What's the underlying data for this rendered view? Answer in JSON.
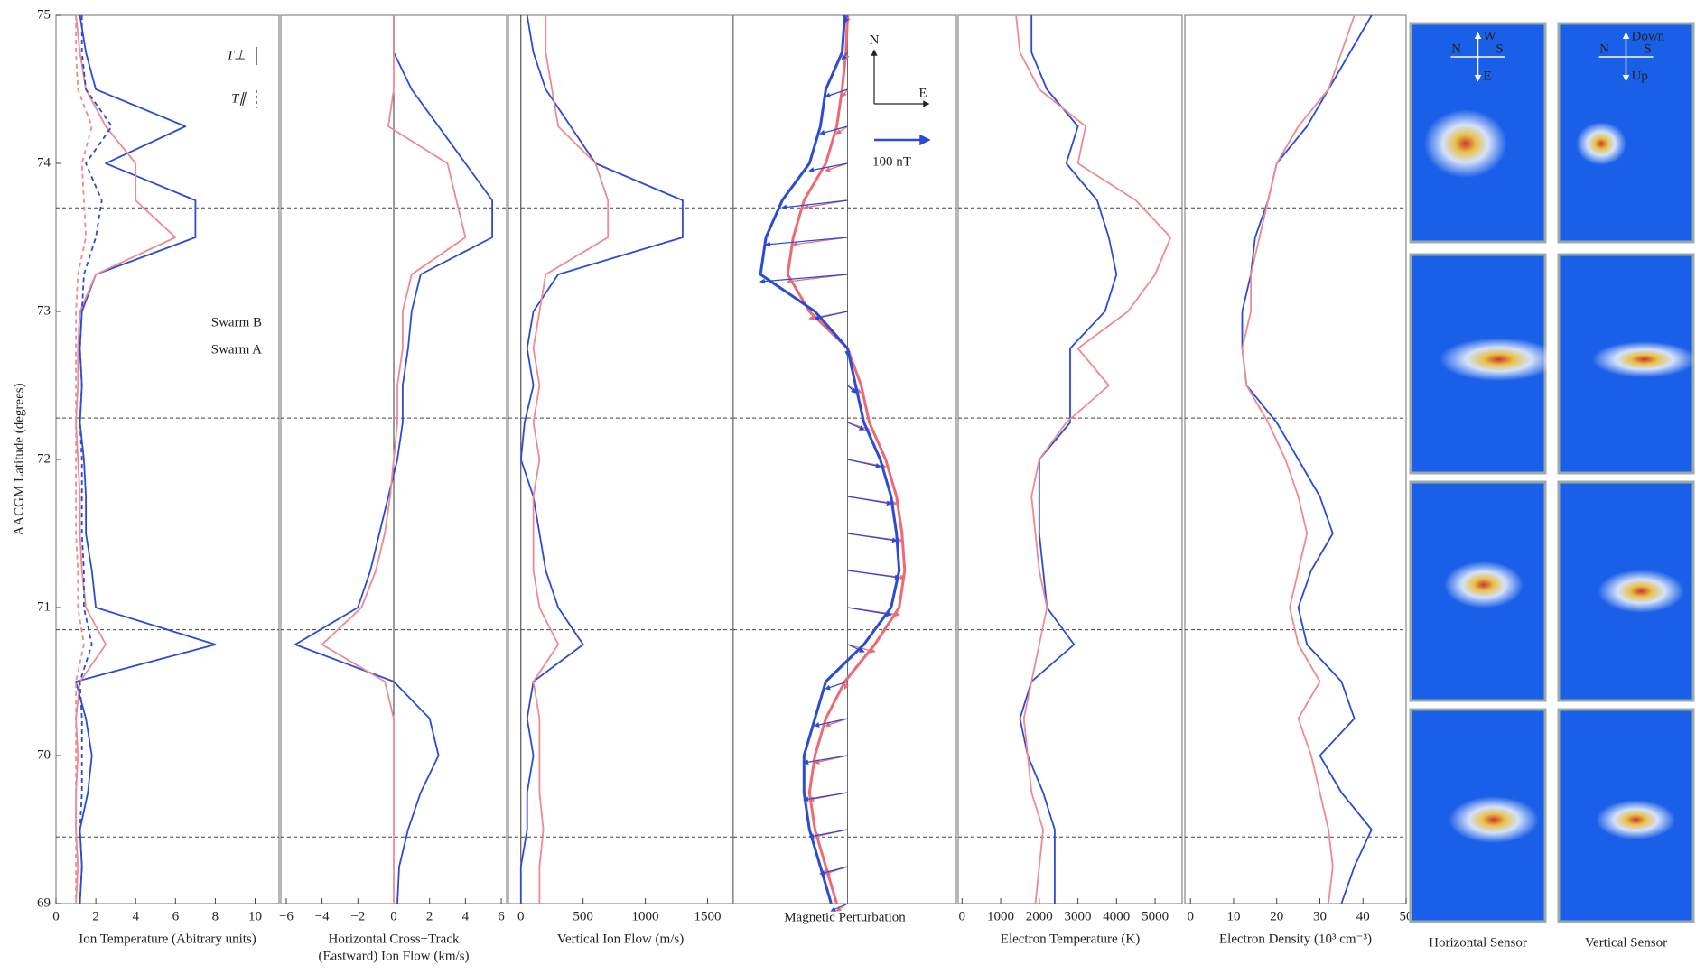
{
  "chart_data": [
    {
      "type": "line",
      "xlabel": [
        "Ion Temperature (Abitrary units)"
      ],
      "ylabel": "AACGM Latitude (degrees)",
      "xlim": [
        0,
        11.2
      ],
      "xticks": [
        0,
        2,
        4,
        6,
        8,
        10
      ],
      "ylim": [
        69,
        75
      ],
      "yticks": [
        69,
        70,
        71,
        72,
        73,
        74,
        75
      ],
      "hlines": [
        73.7,
        72.28,
        70.85,
        69.45
      ],
      "style_legend": [
        {
          "label": "T⊥",
          "dashed": false
        },
        {
          "label": "T∥",
          "dashed": true
        }
      ],
      "y": [
        75,
        74.75,
        74.5,
        74.25,
        74,
        73.75,
        73.5,
        73.25,
        73,
        72.75,
        72.5,
        72.25,
        72,
        71.75,
        71.5,
        71.25,
        71,
        70.75,
        70.5,
        70.25,
        70,
        69.75,
        69.5,
        69.25,
        69
      ],
      "series": [
        {
          "name": "Swarm B",
          "color": "#2a4bd6",
          "dashed": false,
          "values": [
            1.2,
            1.5,
            2,
            6.5,
            2.5,
            7,
            7,
            2,
            1.3,
            1.2,
            1.3,
            1.2,
            1.4,
            1.5,
            1.5,
            1.8,
            2,
            8,
            1,
            1.5,
            1.8,
            1.6,
            1.2,
            1.3,
            1.2
          ]
        },
        {
          "name": "Swarm A",
          "color": "#ee8a90",
          "dashed": false,
          "values": [
            1,
            1.2,
            1.5,
            2.5,
            4,
            4,
            6,
            2,
            1.2,
            1.1,
            1.1,
            1,
            1.1,
            1.2,
            1.2,
            1.3,
            1.5,
            2.5,
            1.2,
            1,
            1.1,
            1,
            1,
            1.1,
            1
          ]
        },
        {
          "color": "#2a4bd6",
          "dashed": true,
          "values": [
            1.3,
            1.3,
            1.5,
            2.8,
            1.5,
            2.3,
            2,
            1.4,
            1.3,
            1.2,
            1.3,
            1.2,
            1.3,
            1.3,
            1.3,
            1.4,
            1.4,
            1.8,
            1.2,
            1.3,
            1.3,
            1.3,
            1.2,
            1.3,
            1.2
          ]
        },
        {
          "color": "#ee8a90",
          "dashed": true,
          "values": [
            1,
            1,
            1.1,
            1.8,
            1.3,
            1.4,
            1.5,
            1.1,
            1,
            1,
            1,
            1,
            1,
            1,
            1,
            1.1,
            1.1,
            1.4,
            1,
            1,
            1,
            1,
            1,
            1,
            1
          ]
        }
      ]
    },
    {
      "type": "line",
      "xlabel": [
        "Horizontal Cross−Track",
        "(Eastward) Ion Flow (km/s)"
      ],
      "xlim": [
        -6.3,
        6.3
      ],
      "xticks": [
        {
          "value": -6,
          "label": "−6"
        },
        {
          "value": -4,
          "label": "−4"
        },
        {
          "value": -2,
          "label": "−2"
        },
        0,
        2,
        4,
        6
      ],
      "ylim": [
        69,
        75
      ],
      "hlines": [
        73.7,
        72.28,
        70.85,
        69.45
      ],
      "zero_line": true,
      "y": [
        75,
        74.75,
        74.5,
        74.25,
        74,
        73.75,
        73.5,
        73.25,
        73,
        72.75,
        72.5,
        72.25,
        72,
        71.75,
        71.5,
        71.25,
        71,
        70.75,
        70.5,
        70.25,
        70,
        69.75,
        69.5,
        69.25,
        69
      ],
      "series": [
        {
          "color": "#2a4bd6",
          "values": [
            0,
            0,
            1,
            2.5,
            4,
            5.5,
            5.5,
            1.5,
            1,
            0.8,
            0.5,
            0.5,
            0.2,
            -0.3,
            -0.8,
            -1.3,
            -2,
            -5.5,
            0,
            2,
            2.5,
            1.5,
            0.8,
            0.3,
            0.2
          ]
        },
        {
          "color": "#ee8a90",
          "values": [
            0,
            0,
            0,
            -0.3,
            3,
            3.5,
            4,
            1,
            0.5,
            0.5,
            0.2,
            0.2,
            0,
            -0.2,
            -0.5,
            -1,
            -1.8,
            -4,
            -0.5,
            0,
            0,
            0,
            0,
            0,
            0
          ]
        }
      ]
    },
    {
      "type": "line",
      "xlabel": [
        "Vertical Ion Flow (m/s)"
      ],
      "xlim": [
        -100,
        1700
      ],
      "xticks": [
        0,
        500,
        1000,
        1500
      ],
      "ylim": [
        69,
        75
      ],
      "hlines": [
        73.7,
        72.28,
        70.85,
        69.45
      ],
      "zero_line": true,
      "y": [
        75,
        74.75,
        74.5,
        74.25,
        74,
        73.75,
        73.5,
        73.25,
        73,
        72.75,
        72.5,
        72.25,
        72,
        71.75,
        71.5,
        71.25,
        71,
        70.75,
        70.5,
        70.25,
        70,
        69.75,
        69.5,
        69.25,
        69
      ],
      "series": [
        {
          "color": "#2a4bd6",
          "values": [
            50,
            100,
            200,
            400,
            600,
            1300,
            1300,
            300,
            100,
            50,
            100,
            30,
            0,
            100,
            150,
            200,
            300,
            500,
            100,
            50,
            100,
            50,
            50,
            0,
            0
          ]
        },
        {
          "color": "#ee8a90",
          "values": [
            200,
            200,
            250,
            300,
            600,
            700,
            700,
            200,
            150,
            100,
            150,
            100,
            150,
            100,
            100,
            100,
            150,
            300,
            100,
            150,
            150,
            150,
            180,
            150,
            150
          ]
        }
      ]
    },
    {
      "type": "quiver",
      "xlabel": [
        "Magnetic Perturbation"
      ],
      "xlim": [
        -210,
        200
      ],
      "ylim": [
        69,
        75
      ],
      "hlines": [
        73.7,
        72.28,
        70.85,
        69.45
      ],
      "compass": [
        "N",
        "E"
      ],
      "scale_arrow": {
        "value": 100,
        "label": "100 nT"
      },
      "y": [
        75,
        74.75,
        74.5,
        74.25,
        74,
        73.75,
        73.5,
        73.25,
        73,
        72.75,
        72.5,
        72.25,
        72,
        71.75,
        71.5,
        71.25,
        71,
        70.75,
        70.5,
        70.25,
        70,
        69.75,
        69.5,
        69.25,
        69
      ],
      "series": [
        {
          "color": "#ee6a72",
          "values": [
            0,
            -3,
            -10,
            -20,
            -40,
            -80,
            -100,
            -110,
            -70,
            0,
            25,
            40,
            70,
            90,
            100,
            105,
            95,
            50,
            -5,
            -40,
            -60,
            -70,
            -60,
            -40,
            -20
          ]
        },
        {
          "color": "#2a4bd6",
          "values": [
            -5,
            -10,
            -40,
            -50,
            -70,
            -120,
            -150,
            -160,
            -60,
            0,
            15,
            30,
            60,
            80,
            90,
            95,
            80,
            30,
            -40,
            -60,
            -80,
            -80,
            -70,
            -50,
            -30
          ]
        }
      ]
    },
    {
      "type": "line",
      "xlabel": [
        "Electron Temperature (K)"
      ],
      "xlim": [
        -100,
        5700
      ],
      "xticks": [
        0,
        1000,
        2000,
        3000,
        4000,
        5000
      ],
      "ylim": [
        69,
        75
      ],
      "hlines": [
        73.7,
        72.28,
        70.85,
        69.45
      ],
      "y": [
        75,
        74.75,
        74.5,
        74.25,
        74,
        73.75,
        73.5,
        73.25,
        73,
        72.75,
        72.5,
        72.25,
        72,
        71.75,
        71.5,
        71.25,
        71,
        70.75,
        70.5,
        70.25,
        70,
        69.75,
        69.5,
        69.25,
        69
      ],
      "series": [
        {
          "color": "#2a4bd6",
          "values": [
            1800,
            1800,
            2200,
            3000,
            2700,
            3500,
            3800,
            4000,
            3700,
            2800,
            2800,
            2800,
            2000,
            2000,
            2000,
            2100,
            2200,
            2900,
            1800,
            1500,
            1700,
            2100,
            2400,
            2400,
            2400
          ]
        },
        {
          "color": "#ee8a90",
          "values": [
            1400,
            1500,
            2000,
            3200,
            3000,
            4500,
            5400,
            5000,
            4300,
            3000,
            3800,
            2700,
            2000,
            1800,
            1900,
            2000,
            2200,
            2000,
            1800,
            1600,
            1700,
            1800,
            2100,
            2000,
            1900
          ]
        }
      ]
    },
    {
      "type": "line",
      "xlabel": [
        "Electron Density (10³ cm⁻³)"
      ],
      "xlim": [
        -1.3,
        50
      ],
      "xticks": [
        0,
        10,
        20,
        30,
        40,
        50
      ],
      "ylim": [
        69,
        75
      ],
      "hlines": [
        73.7,
        72.28,
        70.85,
        69.45
      ],
      "y": [
        75,
        74.75,
        74.5,
        74.25,
        74,
        73.75,
        73.5,
        73.25,
        73,
        72.75,
        72.5,
        72.25,
        72,
        71.75,
        71.5,
        71.25,
        71,
        70.75,
        70.5,
        70.25,
        70,
        69.75,
        69.5,
        69.25,
        69
      ],
      "series": [
        {
          "color": "#2a4bd6",
          "values": [
            42,
            37,
            32,
            27,
            20,
            18,
            15,
            14,
            12,
            12,
            13,
            20,
            25,
            30,
            33,
            28,
            25,
            27,
            35,
            38,
            30,
            35,
            42,
            38,
            35
          ]
        },
        {
          "color": "#ee8a90",
          "values": [
            38,
            35,
            32,
            25,
            20,
            18,
            16,
            14,
            14,
            12,
            13,
            18,
            22,
            25,
            27,
            25,
            23,
            25,
            30,
            25,
            28,
            30,
            32,
            33,
            32
          ]
        }
      ]
    }
  ],
  "sensor_images": {
    "labels": [
      "Horizontal Sensor",
      "Vertical Sensor"
    ],
    "compass": [
      {
        "up": "W",
        "left": "N",
        "right": "S",
        "down": "E"
      },
      {
        "up": "Down",
        "left": "N",
        "right": "S",
        "down": "Up"
      }
    ]
  }
}
